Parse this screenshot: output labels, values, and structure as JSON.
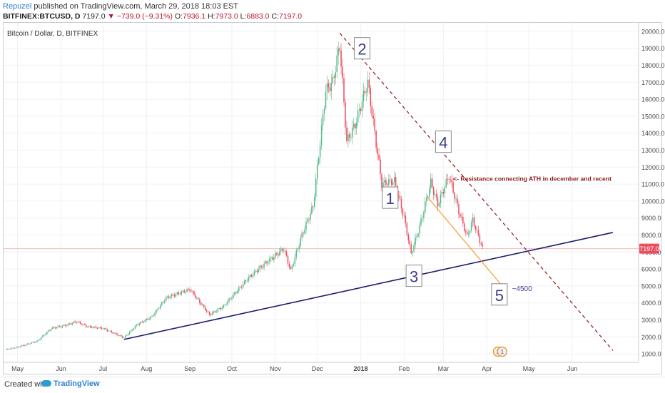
{
  "header": {
    "author": "Repuzel",
    "published_text": "published on TradingView.com, March 29, 2018 18:03 EST",
    "symbol": "BITFINEX:BTCUSD, D",
    "last": "7197.0",
    "change": "▼ −739.0 (−9.31%)",
    "o_label": "O:",
    "o_value": "7936.1",
    "h_label": "H:",
    "h_value": "7973.0",
    "l_label": "L:",
    "l_value": "6883.0",
    "c_label": "C:",
    "c_value": "7197.0"
  },
  "footer": {
    "created_with": "Created with",
    "brand": "TradingView"
  },
  "colors": {
    "up": "#53b987",
    "down": "#eb4d5c",
    "grid": "#eef1f4",
    "axis_text": "#4a4a4a",
    "resistance": "#8b1a1a",
    "support": "#1f1a6b",
    "projection": "#f0a030",
    "price_line": "#f6b7b7",
    "price_badge": "#eb4d5c",
    "wave_label": "#3c3c8c"
  },
  "chart_data": {
    "type": "candlestick",
    "title": "Bitcoin / Dollar, D, BITFINEX",
    "y_ticks": [
      1000,
      2000,
      3000,
      4000,
      5000,
      6000,
      7000,
      8000,
      9000,
      10000,
      11000,
      12000,
      13000,
      14000,
      15000,
      16000,
      17000,
      18000,
      19000,
      20000
    ],
    "ylim": [
      500,
      20500
    ],
    "x_labels": [
      "May",
      "Jun",
      "Jul",
      "Aug",
      "Sep",
      "Oct",
      "Nov",
      "Dec",
      "2018",
      "Feb",
      "Mar",
      "Apr",
      "May",
      "Jun"
    ],
    "current_price": 7197.0,
    "close_series": [
      {
        "date": "2017-04-22",
        "close": 1240
      },
      {
        "date": "2017-05-01",
        "close": 1400
      },
      {
        "date": "2017-05-15",
        "close": 1750
      },
      {
        "date": "2017-05-25",
        "close": 2500
      },
      {
        "date": "2017-06-05",
        "close": 2700
      },
      {
        "date": "2017-06-12",
        "close": 2900
      },
      {
        "date": "2017-06-20",
        "close": 2600
      },
      {
        "date": "2017-07-01",
        "close": 2500
      },
      {
        "date": "2017-07-16",
        "close": 1950
      },
      {
        "date": "2017-07-25",
        "close": 2700
      },
      {
        "date": "2017-08-05",
        "close": 3200
      },
      {
        "date": "2017-08-15",
        "close": 4300
      },
      {
        "date": "2017-09-01",
        "close": 4800
      },
      {
        "date": "2017-09-15",
        "close": 3300
      },
      {
        "date": "2017-09-25",
        "close": 3800
      },
      {
        "date": "2017-10-12",
        "close": 5400
      },
      {
        "date": "2017-10-20",
        "close": 6000
      },
      {
        "date": "2017-11-07",
        "close": 7200
      },
      {
        "date": "2017-11-12",
        "close": 5900
      },
      {
        "date": "2017-11-20",
        "close": 8000
      },
      {
        "date": "2017-11-28",
        "close": 9700
      },
      {
        "date": "2017-12-07",
        "close": 16500
      },
      {
        "date": "2017-12-12",
        "close": 17000
      },
      {
        "date": "2017-12-17",
        "close": 19200
      },
      {
        "date": "2017-12-22",
        "close": 13500
      },
      {
        "date": "2017-12-28",
        "close": 14500
      },
      {
        "date": "2018-01-06",
        "close": 17000
      },
      {
        "date": "2018-01-16",
        "close": 11000
      },
      {
        "date": "2018-01-25",
        "close": 11200
      },
      {
        "date": "2018-02-01",
        "close": 9000
      },
      {
        "date": "2018-02-06",
        "close": 6900
      },
      {
        "date": "2018-02-12",
        "close": 8500
      },
      {
        "date": "2018-02-20",
        "close": 11100
      },
      {
        "date": "2018-02-25",
        "close": 9800
      },
      {
        "date": "2018-03-05",
        "close": 11500
      },
      {
        "date": "2018-03-12",
        "close": 9400
      },
      {
        "date": "2018-03-18",
        "close": 7900
      },
      {
        "date": "2018-03-22",
        "close": 8900
      },
      {
        "date": "2018-03-29",
        "close": 7197
      }
    ],
    "annotations": [
      {
        "text": "1",
        "date": "2018-01-22",
        "price": 10200
      },
      {
        "text": "2",
        "date": "2018-01-02",
        "price": 19000
      },
      {
        "text": "3",
        "date": "2018-02-08",
        "price": 5600
      },
      {
        "text": "4",
        "date": "2018-03-01",
        "price": 13500
      },
      {
        "text": "5",
        "date": "2018-04-10",
        "price": 4500
      },
      {
        "text": "~4500",
        "date": "2018-04-19",
        "price": 4700
      },
      {
        "text": "<- Resistance connecting ATH in december and recent",
        "date": "2018-03-08",
        "price": 11200
      }
    ],
    "trendlines": [
      {
        "name": "resistance",
        "style": "dashed",
        "from": {
          "date": "2017-12-17",
          "price": 19900
        },
        "to": {
          "date": "2018-06-30",
          "price": 1200
        }
      },
      {
        "name": "support",
        "style": "solid",
        "from": {
          "date": "2017-07-16",
          "price": 1850
        },
        "to": {
          "date": "2018-06-30",
          "price": 8150
        }
      },
      {
        "name": "projection",
        "style": "solid",
        "from": {
          "date": "2018-02-17",
          "price": 10300
        },
        "to": {
          "date": "2018-04-14",
          "price": 4800
        }
      }
    ],
    "events": [
      {
        "label": "2",
        "date": "2018-04-09"
      },
      {
        "label": "1",
        "date": "2018-04-12"
      }
    ]
  }
}
